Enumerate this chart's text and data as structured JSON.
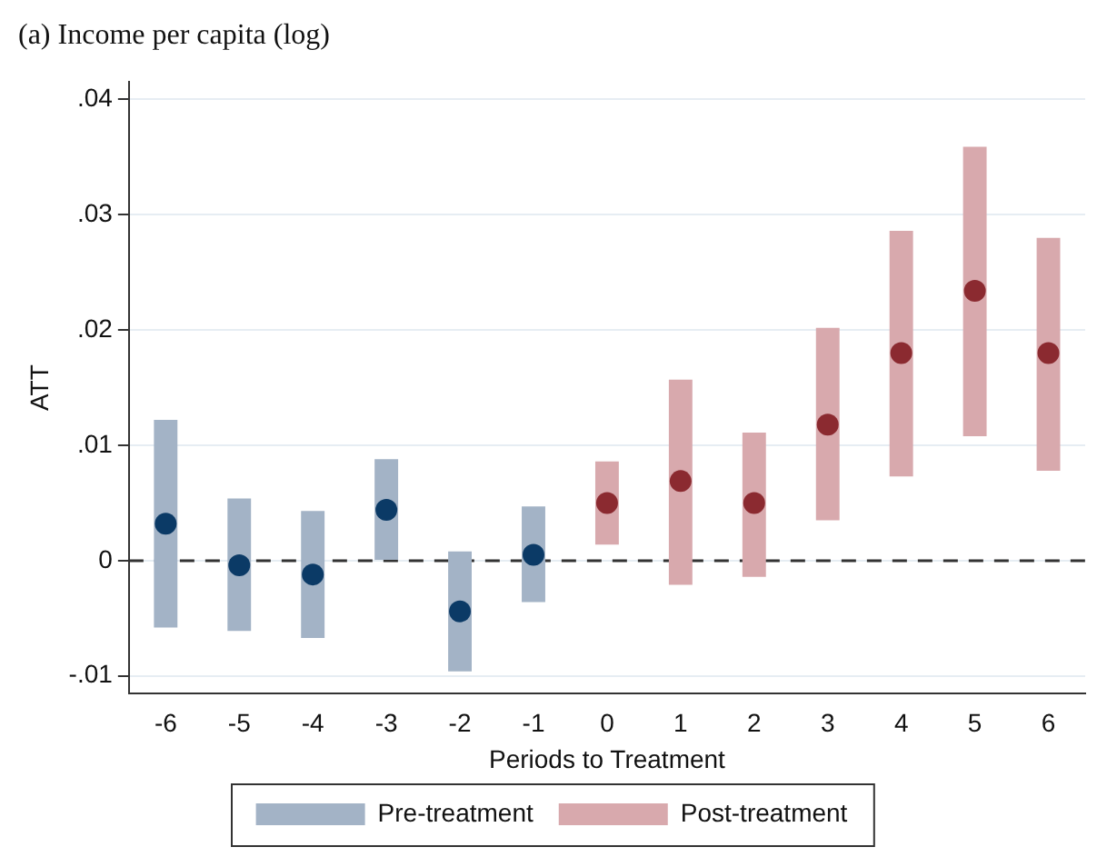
{
  "chart_data": {
    "type": "bar",
    "title": "(a) Income per capita (log)",
    "xlabel": "Periods to Treatment",
    "ylabel": "ATT",
    "categories": [
      "-6",
      "-5",
      "-4",
      "-3",
      "-2",
      "-1",
      "0",
      "1",
      "2",
      "3",
      "4",
      "5",
      "6"
    ],
    "series": [
      {
        "name": "Pre-treatment",
        "type": "bar",
        "color": "#a3b3c6",
        "base": [
          -0.0058,
          -0.0061,
          -0.0067,
          0,
          -0.0096,
          -0.0036,
          null,
          null,
          null,
          null,
          null,
          null,
          null
        ],
        "values": [
          0.018,
          0.0115,
          0.011,
          0.0088,
          0.0104,
          0.0083,
          null,
          null,
          null,
          null,
          null,
          null,
          null
        ]
      },
      {
        "name": "Post-treatment",
        "type": "bar",
        "color": "#d8a9ad",
        "base": [
          null,
          null,
          null,
          null,
          null,
          null,
          0.0014,
          -0.0021,
          -0.0014,
          0.0035,
          0.0073,
          0.0108,
          0.0078
        ],
        "values": [
          null,
          null,
          null,
          null,
          null,
          null,
          0.0072,
          0.0178,
          0.0125,
          0.0167,
          0.0213,
          0.0251,
          0.0202
        ]
      },
      {
        "type": "scatter",
        "color": "#0b3a66",
        "marker": "circle",
        "x": [
          "-6",
          "-5",
          "-4",
          "-3",
          "-2",
          "-1"
        ],
        "values": [
          0.0032,
          -0.0004,
          -0.0012,
          0.0044,
          -0.0044,
          0.0005
        ]
      },
      {
        "type": "scatter",
        "color": "#8b2a30",
        "marker": "circle",
        "x": [
          "0",
          "1",
          "2",
          "3",
          "4",
          "5",
          "6"
        ],
        "values": [
          0.005,
          0.0069,
          0.005,
          0.0118,
          0.018,
          0.0234,
          0.018
        ]
      }
    ],
    "ylim": [
      -0.0115,
      0.0415
    ],
    "yticks": [
      {
        "value": -0.01,
        "label": "-.01"
      },
      0,
      {
        "value": 0.01,
        "label": ".01"
      },
      {
        "value": 0.02,
        "label": ".02"
      },
      {
        "value": 0.03,
        "label": ".03"
      },
      {
        "value": 0.04,
        "label": ".04"
      }
    ],
    "ref_lines": [
      {
        "axis": "y",
        "value": 0,
        "line_style": "dashed",
        "color": "#333333"
      }
    ],
    "grid": "y",
    "legend": "bottom"
  }
}
